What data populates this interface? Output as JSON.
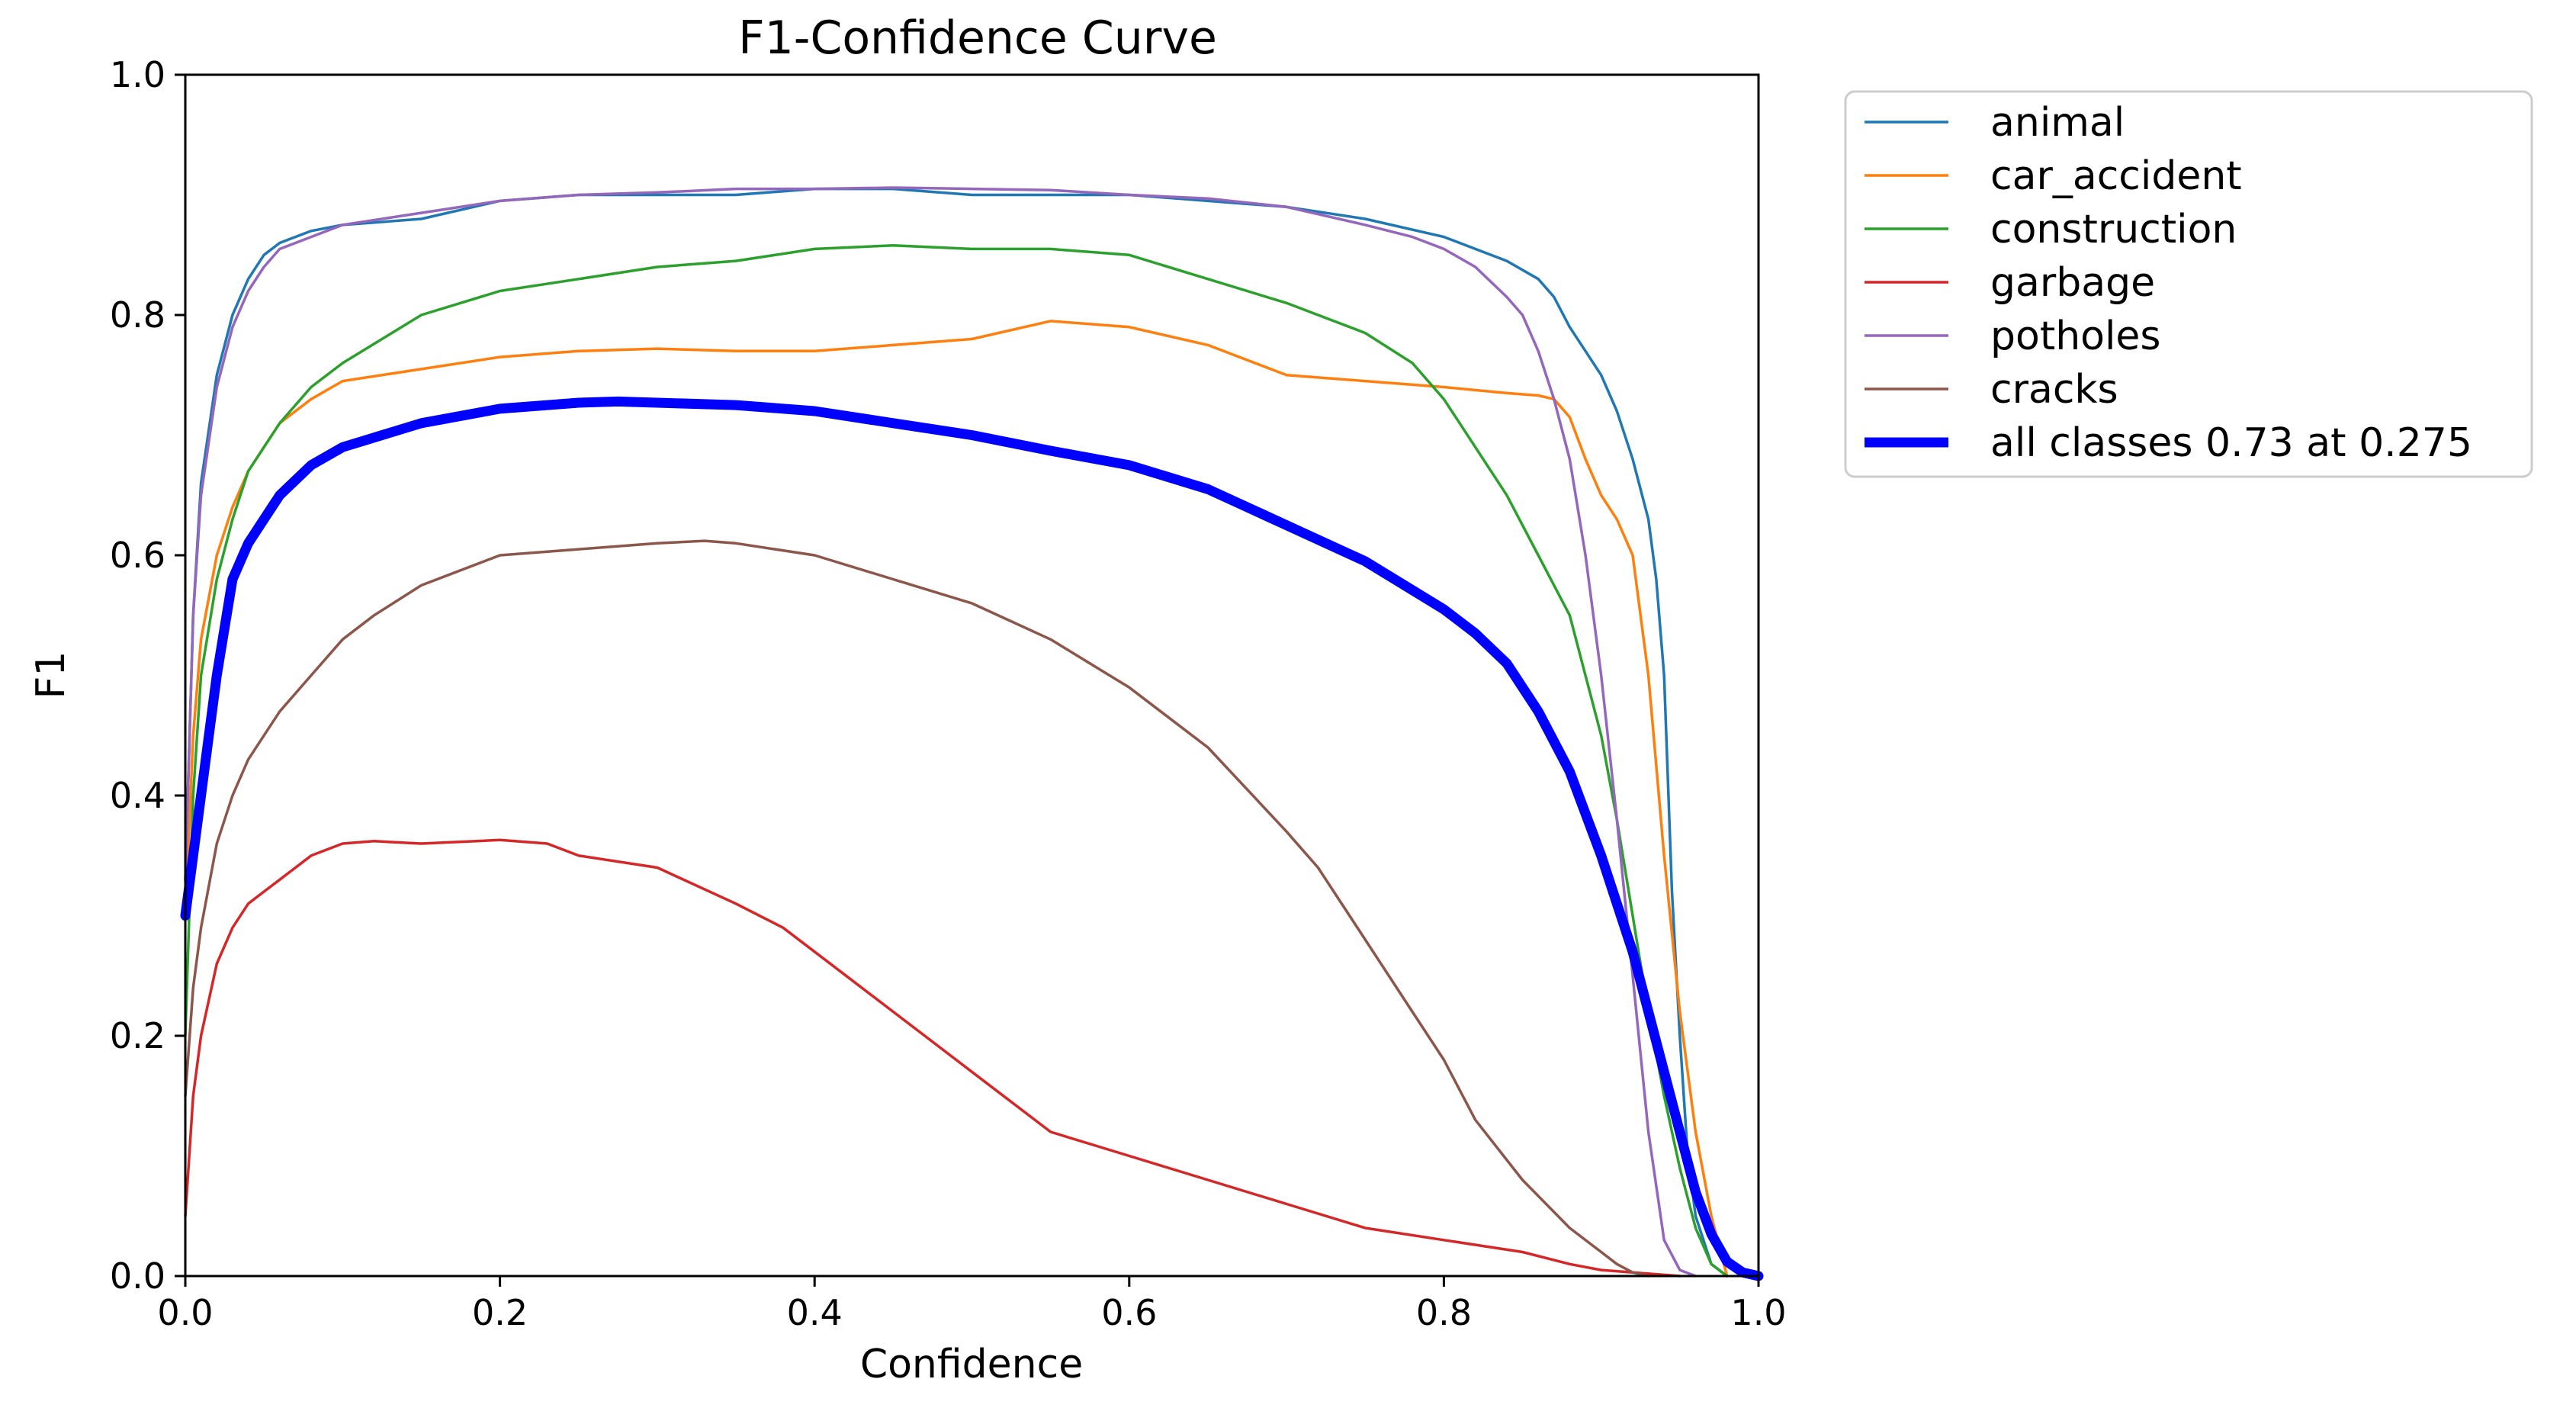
{
  "chart_data": {
    "type": "line",
    "title": "F1-Confidence Curve",
    "xlabel": "Confidence",
    "ylabel": "F1",
    "xlim": [
      0.0,
      1.0
    ],
    "ylim": [
      0.0,
      1.0
    ],
    "xticks": [
      "0.0",
      "0.2",
      "0.4",
      "0.6",
      "0.8",
      "1.0"
    ],
    "yticks": [
      "0.0",
      "0.2",
      "0.4",
      "0.6",
      "0.8",
      "1.0"
    ],
    "grid": false,
    "legend_position": "outside-upper-right",
    "series": [
      {
        "name": "animal",
        "color": "#1f77b4",
        "width": "thin",
        "x": [
          0.0,
          0.005,
          0.01,
          0.02,
          0.03,
          0.04,
          0.05,
          0.06,
          0.07,
          0.08,
          0.1,
          0.15,
          0.2,
          0.25,
          0.3,
          0.35,
          0.4,
          0.45,
          0.5,
          0.55,
          0.6,
          0.65,
          0.7,
          0.75,
          0.8,
          0.82,
          0.84,
          0.86,
          0.87,
          0.88,
          0.89,
          0.9,
          0.91,
          0.92,
          0.93,
          0.935,
          0.94,
          0.945,
          0.95,
          0.955,
          0.96,
          0.97,
          0.98
        ],
        "y": [
          0.33,
          0.55,
          0.66,
          0.75,
          0.8,
          0.83,
          0.85,
          0.86,
          0.865,
          0.87,
          0.875,
          0.88,
          0.895,
          0.9,
          0.9,
          0.9,
          0.905,
          0.905,
          0.9,
          0.9,
          0.9,
          0.895,
          0.89,
          0.88,
          0.865,
          0.855,
          0.845,
          0.83,
          0.815,
          0.79,
          0.77,
          0.75,
          0.72,
          0.68,
          0.63,
          0.58,
          0.5,
          0.32,
          0.2,
          0.1,
          0.05,
          0.01,
          0.0
        ]
      },
      {
        "name": "car_accident",
        "color": "#ff7f0e",
        "width": "thin",
        "x": [
          0.0,
          0.005,
          0.01,
          0.02,
          0.03,
          0.04,
          0.05,
          0.06,
          0.08,
          0.1,
          0.15,
          0.2,
          0.25,
          0.3,
          0.35,
          0.4,
          0.45,
          0.5,
          0.55,
          0.6,
          0.65,
          0.7,
          0.75,
          0.8,
          0.84,
          0.86,
          0.87,
          0.88,
          0.89,
          0.9,
          0.91,
          0.92,
          0.93,
          0.94,
          0.95,
          0.96,
          0.97,
          0.98
        ],
        "y": [
          0.3,
          0.45,
          0.53,
          0.6,
          0.64,
          0.67,
          0.69,
          0.71,
          0.73,
          0.745,
          0.755,
          0.765,
          0.77,
          0.772,
          0.77,
          0.77,
          0.775,
          0.78,
          0.795,
          0.79,
          0.775,
          0.75,
          0.745,
          0.74,
          0.735,
          0.733,
          0.73,
          0.715,
          0.68,
          0.65,
          0.63,
          0.6,
          0.5,
          0.35,
          0.22,
          0.12,
          0.05,
          0.0
        ]
      },
      {
        "name": "construction",
        "color": "#2ca02c",
        "width": "thin",
        "x": [
          0.0,
          0.005,
          0.01,
          0.02,
          0.03,
          0.04,
          0.05,
          0.06,
          0.08,
          0.1,
          0.15,
          0.2,
          0.25,
          0.3,
          0.35,
          0.4,
          0.45,
          0.5,
          0.55,
          0.6,
          0.65,
          0.7,
          0.75,
          0.78,
          0.8,
          0.82,
          0.84,
          0.86,
          0.88,
          0.9,
          0.91,
          0.92,
          0.93,
          0.94,
          0.95,
          0.96,
          0.97,
          0.98
        ],
        "y": [
          0.2,
          0.4,
          0.5,
          0.58,
          0.63,
          0.67,
          0.69,
          0.71,
          0.74,
          0.76,
          0.8,
          0.82,
          0.83,
          0.84,
          0.845,
          0.855,
          0.858,
          0.855,
          0.855,
          0.85,
          0.83,
          0.81,
          0.785,
          0.76,
          0.73,
          0.69,
          0.65,
          0.6,
          0.55,
          0.45,
          0.38,
          0.3,
          0.22,
          0.15,
          0.09,
          0.04,
          0.01,
          0.0
        ]
      },
      {
        "name": "garbage",
        "color": "#d62728",
        "width": "thin",
        "x": [
          0.0,
          0.005,
          0.01,
          0.02,
          0.03,
          0.04,
          0.05,
          0.06,
          0.08,
          0.1,
          0.12,
          0.15,
          0.2,
          0.23,
          0.25,
          0.3,
          0.35,
          0.38,
          0.4,
          0.42,
          0.45,
          0.47,
          0.5,
          0.55,
          0.6,
          0.65,
          0.7,
          0.75,
          0.8,
          0.85,
          0.88,
          0.9,
          0.92,
          0.94,
          0.95
        ],
        "y": [
          0.05,
          0.15,
          0.2,
          0.26,
          0.29,
          0.31,
          0.32,
          0.33,
          0.35,
          0.36,
          0.362,
          0.36,
          0.363,
          0.36,
          0.35,
          0.34,
          0.31,
          0.29,
          0.27,
          0.25,
          0.22,
          0.2,
          0.17,
          0.12,
          0.1,
          0.08,
          0.06,
          0.04,
          0.03,
          0.02,
          0.01,
          0.005,
          0.003,
          0.001,
          0.0
        ]
      },
      {
        "name": "potholes",
        "color": "#9467bd",
        "width": "thin",
        "x": [
          0.0,
          0.005,
          0.01,
          0.02,
          0.03,
          0.04,
          0.05,
          0.06,
          0.08,
          0.1,
          0.15,
          0.2,
          0.25,
          0.3,
          0.35,
          0.4,
          0.45,
          0.5,
          0.55,
          0.6,
          0.65,
          0.7,
          0.75,
          0.78,
          0.8,
          0.82,
          0.84,
          0.85,
          0.86,
          0.87,
          0.88,
          0.89,
          0.9,
          0.91,
          0.92,
          0.93,
          0.94,
          0.95,
          0.96
        ],
        "y": [
          0.33,
          0.55,
          0.65,
          0.74,
          0.79,
          0.82,
          0.84,
          0.855,
          0.865,
          0.875,
          0.885,
          0.895,
          0.9,
          0.902,
          0.905,
          0.905,
          0.906,
          0.905,
          0.904,
          0.9,
          0.897,
          0.89,
          0.875,
          0.865,
          0.855,
          0.84,
          0.815,
          0.8,
          0.77,
          0.73,
          0.68,
          0.6,
          0.5,
          0.38,
          0.25,
          0.12,
          0.03,
          0.005,
          0.0
        ]
      },
      {
        "name": "cracks",
        "color": "#8c564b",
        "width": "thin",
        "x": [
          0.0,
          0.005,
          0.01,
          0.02,
          0.03,
          0.04,
          0.05,
          0.06,
          0.08,
          0.1,
          0.12,
          0.15,
          0.2,
          0.25,
          0.3,
          0.33,
          0.35,
          0.4,
          0.45,
          0.5,
          0.55,
          0.6,
          0.65,
          0.7,
          0.72,
          0.75,
          0.78,
          0.8,
          0.82,
          0.85,
          0.88,
          0.9,
          0.91,
          0.92,
          0.93
        ],
        "y": [
          0.15,
          0.24,
          0.29,
          0.36,
          0.4,
          0.43,
          0.45,
          0.47,
          0.5,
          0.53,
          0.55,
          0.575,
          0.6,
          0.605,
          0.61,
          0.612,
          0.61,
          0.6,
          0.58,
          0.56,
          0.53,
          0.49,
          0.44,
          0.37,
          0.34,
          0.28,
          0.22,
          0.18,
          0.13,
          0.08,
          0.04,
          0.02,
          0.01,
          0.003,
          0.0
        ]
      },
      {
        "name": "all classes 0.73 at 0.275",
        "color": "#0000ff",
        "width": "thick",
        "x": [
          0.0,
          0.005,
          0.01,
          0.015,
          0.02,
          0.025,
          0.03,
          0.04,
          0.05,
          0.06,
          0.08,
          0.1,
          0.15,
          0.2,
          0.25,
          0.275,
          0.3,
          0.35,
          0.4,
          0.45,
          0.5,
          0.55,
          0.6,
          0.65,
          0.7,
          0.75,
          0.8,
          0.82,
          0.84,
          0.86,
          0.88,
          0.9,
          0.91,
          0.92,
          0.93,
          0.94,
          0.95,
          0.96,
          0.97,
          0.98,
          0.99,
          1.0
        ],
        "y": [
          0.3,
          0.35,
          0.4,
          0.45,
          0.5,
          0.54,
          0.58,
          0.61,
          0.63,
          0.65,
          0.675,
          0.69,
          0.71,
          0.722,
          0.727,
          0.728,
          0.727,
          0.725,
          0.72,
          0.71,
          0.7,
          0.687,
          0.675,
          0.655,
          0.625,
          0.595,
          0.555,
          0.535,
          0.51,
          0.47,
          0.42,
          0.35,
          0.31,
          0.27,
          0.22,
          0.17,
          0.12,
          0.07,
          0.035,
          0.012,
          0.003,
          0.0
        ]
      }
    ]
  }
}
